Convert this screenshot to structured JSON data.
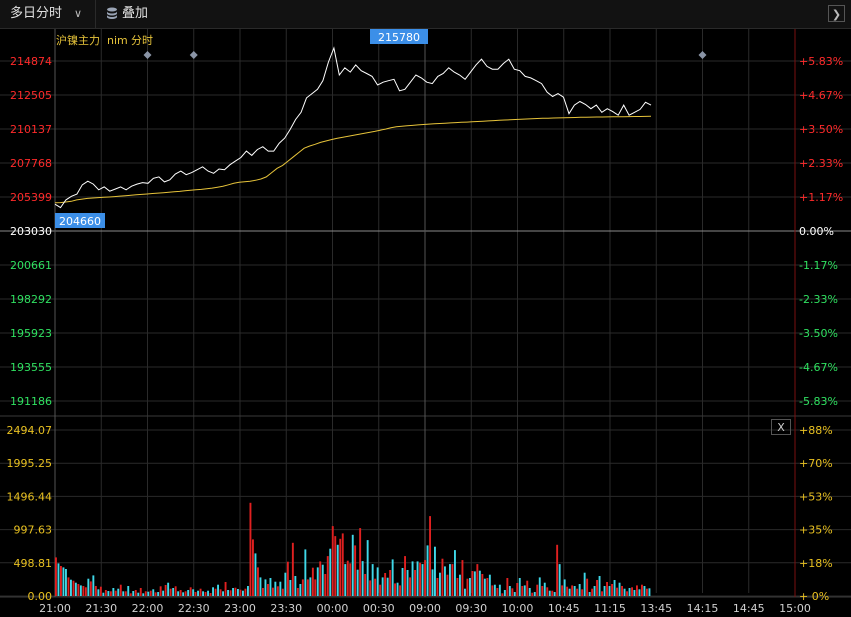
{
  "toolbar": {
    "mode_label": "多日分时",
    "mode_icon": "chevron-down-icon",
    "overlay_label": "叠加",
    "overlay_icon": "database-icon",
    "collapse_icon": "chevron-right-icon"
  },
  "legend": {
    "symbol": "沪镍主力",
    "code": "nim",
    "period": "分时"
  },
  "markers": {
    "high_label": "215780",
    "low_label": "204660"
  },
  "volume_panel": {
    "close_label": "X"
  },
  "colors": {
    "up": "#ff2a2a",
    "down": "#2fe060",
    "neutral": "#ffffff",
    "price_line": "#ffffff",
    "avg_line": "#e6c33a",
    "vol_up": "#e02020",
    "vol_down": "#3fd8e8",
    "volume_label": "#e8c020",
    "marker_bg": "#3c8fe8",
    "grid": "#2a2a2a"
  },
  "chart_data": [
    {
      "type": "line",
      "title": "",
      "series": [
        {
          "name": "",
          "role": "price",
          "values": [
            204900,
            204660,
            205200,
            205450,
            205600,
            206250,
            206500,
            206300,
            205900,
            206100,
            205800,
            205950,
            206100,
            205900,
            206150,
            206300,
            206400,
            206350,
            206700,
            206800,
            206450,
            206600,
            207000,
            207200,
            206950,
            207100,
            207300,
            207500,
            207200,
            207050,
            207350,
            207300,
            207650,
            207900,
            208150,
            208600,
            208300,
            208700,
            208900,
            208600,
            208600,
            209150,
            209500,
            210100,
            210800,
            211300,
            212300,
            212600,
            212900,
            213500,
            214800,
            215780,
            213900,
            214400,
            214100,
            214600,
            214200,
            214000,
            213800,
            213200,
            213400,
            213500,
            213600,
            212800,
            212900,
            213400,
            213900,
            213700,
            213400,
            213300,
            213800,
            214000,
            214400,
            214100,
            213900,
            213600,
            214100,
            214600,
            215000,
            214500,
            214300,
            214300,
            214700,
            215000,
            214300,
            214200,
            213800,
            213700,
            213500,
            213300,
            212700,
            212400,
            212600,
            212350,
            211200,
            211800,
            212050,
            211850,
            211550,
            211800,
            211300,
            211550,
            211350,
            211100,
            211800,
            211100,
            211300,
            211500,
            212000,
            211800
          ]
        },
        {
          "name": "",
          "role": "average",
          "values": [
            205000,
            205010,
            205050,
            205100,
            205200,
            205250,
            205300,
            205330,
            205360,
            205380,
            205400,
            205430,
            205460,
            205490,
            205520,
            205550,
            205580,
            205610,
            205640,
            205670,
            205700,
            205730,
            205760,
            205790,
            205830,
            205870,
            205900,
            205930,
            205970,
            206020,
            206080,
            206150,
            206250,
            206350,
            206420,
            206460,
            206500,
            206560,
            206650,
            206800,
            207100,
            207400,
            207600,
            207900,
            208200,
            208500,
            208800,
            208950,
            209070,
            209200,
            209300,
            209400,
            209480,
            209550,
            209620,
            209690,
            209760,
            209830,
            209900,
            209970,
            210050,
            210130,
            210220,
            210290,
            210330,
            210360,
            210390,
            210420,
            210450,
            210480,
            210500,
            210520,
            210540,
            210560,
            210580,
            210600,
            210620,
            210640,
            210660,
            210680,
            210700,
            210720,
            210740,
            210760,
            210780,
            210800,
            210820,
            210835,
            210850,
            210865,
            210880,
            210890,
            210900,
            210910,
            210920,
            210930,
            210940,
            210950,
            210960,
            210965,
            210970,
            210975,
            210980,
            210985,
            210990,
            210995,
            211000,
            211005,
            211010,
            211015,
            211020
          ]
        }
      ],
      "y_ticks_left": [
        "214874",
        "212505",
        "210137",
        "207768",
        "205399",
        "203030",
        "200661",
        "198292",
        "195923",
        "193555",
        "191186"
      ],
      "y_ticks_right": [
        "+5.83%",
        "+4.67%",
        "+3.50%",
        "+2.33%",
        "+1.17%",
        "0.00%",
        "-1.17%",
        "-2.33%",
        "-3.50%",
        "-4.67%",
        "-5.83%"
      ],
      "ylim": [
        190000,
        216500
      ],
      "reference_price": 203030,
      "x_ticks": [
        "21:00",
        "21:30",
        "22:00",
        "22:30",
        "23:00",
        "23:30",
        "00:00",
        "00:30",
        "09:00",
        "09:30",
        "10:00",
        "10:45",
        "11:15",
        "13:45",
        "14:15",
        "14:45",
        "15:00"
      ],
      "session_dividers": [
        "21:00",
        "09:00"
      ],
      "diamond_markers_at": [
        "22:00",
        "22:30",
        "14:15"
      ],
      "grid": true
    },
    {
      "type": "bar",
      "title": "",
      "y_ticks_left": [
        "2494.07",
        "1995.25",
        "1496.44",
        "997.63",
        "498.81",
        "0.00"
      ],
      "y_ticks_right": [
        "+88%",
        "+70%",
        "+53%",
        "+35%",
        "+18%",
        "+ 0%"
      ],
      "ylim": [
        0,
        2494.07
      ],
      "volume_values": [
        580,
        490,
        450,
        430,
        405,
        280,
        245,
        230,
        200,
        180,
        160,
        150,
        130,
        260,
        220,
        310,
        150,
        100,
        140,
        50,
        90,
        75,
        70,
        120,
        80,
        110,
        170,
        70,
        70,
        150,
        40,
        75,
        90,
        50,
        120,
        40,
        70,
        65,
        80,
        100,
        55,
        60,
        145,
        80,
        165,
        200,
        110,
        120,
        145,
        70,
        90,
        55,
        70,
        90,
        130,
        100,
        60,
        80,
        110,
        70,
        60,
        80,
        45,
        130,
        110,
        170,
        100,
        70,
        210,
        90,
        85,
        120,
        125,
        105,
        95,
        80,
        110,
        150,
        1400,
        850,
        640,
        430,
        280,
        120,
        250,
        180,
        270,
        125,
        215,
        145,
        215,
        110,
        350,
        515,
        240,
        800,
        300,
        120,
        180,
        250,
        700,
        250,
        280,
        425,
        250,
        430,
        520,
        470,
        330,
        600,
        710,
        1050,
        900,
        770,
        860,
        940,
        480,
        530,
        490,
        920,
        760,
        395,
        1020,
        525,
        330,
        840,
        235,
        480,
        260,
        430,
        170,
        280,
        345,
        275,
        390,
        550,
        190,
        200,
        160,
        420,
        600,
        390,
        280,
        520,
        390,
        520,
        500,
        480,
        540,
        760,
        1200,
        400,
        740,
        270,
        350,
        560,
        445,
        320,
        480,
        480,
        690,
        270,
        320,
        540,
        110,
        260,
        270,
        375,
        370,
        480,
        380,
        330,
        260,
        270,
        320,
        160,
        170,
        120,
        170,
        40,
        90,
        270,
        150,
        115,
        60,
        195,
        270,
        150,
        160,
        230,
        120,
        50,
        60,
        170,
        280,
        150,
        200,
        130,
        80,
        80,
        60,
        770,
        480,
        160,
        250,
        140,
        110,
        160,
        150,
        110,
        180,
        100,
        350,
        260,
        60,
        110,
        150,
        240,
        300,
        70,
        150,
        210,
        150,
        180,
        240,
        125,
        200,
        150,
        110,
        70,
        120,
        130,
        90,
        160,
        100,
        170,
        150,
        110,
        115
      ],
      "volume_colors": [
        "u",
        "d",
        "u",
        "d",
        "d",
        "u",
        "d",
        "u",
        "d",
        "u",
        "d",
        "u",
        "u",
        "d",
        "u",
        "d",
        "u",
        "d",
        "u",
        "d",
        "u",
        "d",
        "u",
        "d",
        "u",
        "d",
        "u",
        "d",
        "u",
        "d",
        "u",
        "d",
        "u",
        "d",
        "u",
        "d",
        "u",
        "d",
        "u",
        "d",
        "u",
        "d",
        "u",
        "d",
        "u",
        "d",
        "u",
        "d",
        "u",
        "d",
        "u",
        "d",
        "u",
        "d",
        "u",
        "d",
        "u",
        "d",
        "u",
        "d",
        "u",
        "d",
        "u",
        "d",
        "u",
        "d",
        "u",
        "d",
        "u",
        "d",
        "u",
        "d",
        "u",
        "d",
        "u",
        "d",
        "u",
        "d",
        "u",
        "u",
        "d",
        "u",
        "d",
        "u",
        "d",
        "u",
        "d",
        "u",
        "d",
        "u",
        "d",
        "u",
        "d",
        "u",
        "d",
        "u",
        "d",
        "u",
        "d",
        "u",
        "d",
        "u",
        "d",
        "u",
        "u",
        "d",
        "u",
        "d",
        "u",
        "u",
        "d",
        "u",
        "u",
        "d",
        "u",
        "u",
        "d",
        "u",
        "u",
        "d",
        "u",
        "d",
        "u",
        "d",
        "u",
        "d",
        "u",
        "d",
        "u",
        "d",
        "u",
        "d",
        "u",
        "d",
        "u",
        "d",
        "u",
        "d",
        "u",
        "d",
        "u",
        "d",
        "u",
        "d",
        "u",
        "d",
        "u",
        "d",
        "u",
        "d",
        "u",
        "d",
        "d",
        "u",
        "d",
        "u",
        "d",
        "u",
        "d",
        "u",
        "d",
        "u",
        "d",
        "u",
        "d",
        "u",
        "d",
        "u",
        "d",
        "u",
        "d",
        "u",
        "d",
        "u",
        "d",
        "u",
        "d",
        "u",
        "d",
        "u",
        "d",
        "u",
        "d",
        "u",
        "d",
        "u",
        "d",
        "u",
        "d",
        "u",
        "d",
        "u",
        "d",
        "u",
        "d",
        "u",
        "d",
        "u",
        "d",
        "u",
        "d",
        "u",
        "d",
        "u",
        "d",
        "u",
        "d",
        "u",
        "d",
        "u",
        "d",
        "u",
        "d",
        "u",
        "d",
        "u",
        "d",
        "u",
        "d",
        "u",
        "d",
        "u",
        "d",
        "u",
        "d",
        "u",
        "d",
        "u",
        "d",
        "u",
        "d",
        "u",
        "d",
        "u",
        "d",
        "u",
        "d",
        "u",
        "d",
        "u",
        "d",
        "u",
        "d",
        "u",
        "d"
      ]
    }
  ]
}
